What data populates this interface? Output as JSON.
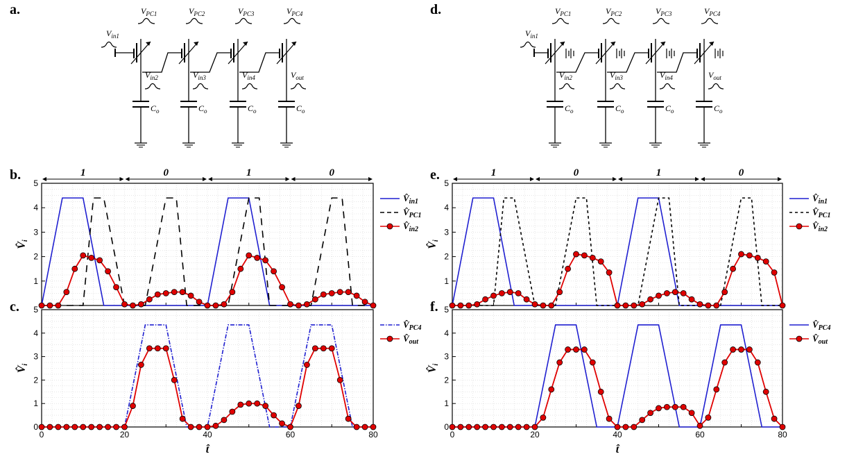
{
  "figure": {
    "panel_letters": {
      "a": "a.",
      "b": "b.",
      "c": "c.",
      "d": "d.",
      "e": "e.",
      "f": "f."
    },
    "circuit": {
      "vin1": "V",
      "vin1_sub": "in1",
      "vpc": [
        {
          "v": "V",
          "sub": "PC1"
        },
        {
          "v": "V",
          "sub": "PC2"
        },
        {
          "v": "V",
          "sub": "PC3"
        },
        {
          "v": "V",
          "sub": "PC4"
        }
      ],
      "vnodes": [
        {
          "v": "V",
          "sub": "in2"
        },
        {
          "v": "V",
          "sub": "in3"
        },
        {
          "v": "V",
          "sub": "in4"
        },
        {
          "v": "V",
          "sub": "out"
        }
      ],
      "cap": {
        "v": "C",
        "sub": "o"
      }
    },
    "bits": [
      "1",
      "0",
      "1",
      "0"
    ],
    "xlabel": "t̂",
    "ylabel": "V̂",
    "ylabel_sub": "i"
  },
  "chart_data": [
    {
      "panel": "b",
      "type": "line",
      "xlim": [
        0,
        80
      ],
      "ylim": [
        0,
        5
      ],
      "yticks": [
        1,
        2,
        3,
        4,
        5
      ],
      "grid": true,
      "legend_placement": "right",
      "series": [
        {
          "name": "V̂",
          "name_sub": "in1",
          "color": "#1f1fd0",
          "style": "solid",
          "x": [
            0,
            5,
            10,
            15,
            20,
            25,
            30,
            35,
            40,
            45,
            50,
            55,
            60,
            65,
            70,
            75,
            80
          ],
          "y": [
            0,
            4.4,
            4.4,
            0,
            0,
            0,
            0,
            0,
            0,
            4.4,
            4.4,
            0,
            0,
            0,
            0,
            0,
            0
          ]
        },
        {
          "name": "V̂",
          "name_sub": "PC1",
          "color": "#000000",
          "style": "longdash",
          "x": [
            0,
            5,
            10,
            12.5,
            15,
            20,
            25,
            30,
            32.5,
            35,
            40,
            45,
            50,
            52.5,
            55,
            60,
            65,
            70,
            72.5,
            75,
            80
          ],
          "y": [
            0,
            0,
            0,
            4.4,
            4.4,
            0,
            0,
            4.4,
            4.4,
            0,
            0,
            0,
            4.4,
            4.4,
            0,
            0,
            0,
            4.4,
            4.4,
            0,
            0
          ]
        },
        {
          "name": "V̂",
          "name_sub": "in2",
          "color": "#e00000",
          "style": "markers",
          "x": [
            0,
            2,
            4,
            6,
            8,
            10,
            12,
            14,
            16,
            18,
            20,
            22,
            24,
            26,
            28,
            30,
            32,
            34,
            36,
            38,
            40,
            42,
            44,
            46,
            48,
            50,
            52,
            54,
            56,
            58,
            60,
            62,
            64,
            66,
            68,
            70,
            72,
            74,
            76,
            78,
            80
          ],
          "y": [
            0,
            0,
            0,
            0.55,
            1.5,
            2.05,
            1.95,
            1.85,
            1.4,
            0.75,
            0.05,
            0,
            0.05,
            0.25,
            0.45,
            0.5,
            0.55,
            0.55,
            0.4,
            0.15,
            0,
            0,
            0.05,
            0.55,
            1.5,
            2.05,
            1.95,
            1.85,
            1.4,
            0.75,
            0.05,
            0,
            0.05,
            0.25,
            0.45,
            0.5,
            0.55,
            0.55,
            0.4,
            0.15,
            0
          ]
        }
      ]
    },
    {
      "panel": "c",
      "type": "line",
      "xlim": [
        0,
        80
      ],
      "ylim": [
        0,
        5
      ],
      "xticks": [
        0,
        20,
        40,
        60,
        80
      ],
      "yticks": [
        0,
        1,
        2,
        3,
        4,
        5
      ],
      "grid": true,
      "legend_placement": "right",
      "series": [
        {
          "name": "V̂",
          "name_sub": "PC4",
          "color": "#1f1fd0",
          "style": "dashdot",
          "x": [
            0,
            20,
            25,
            30,
            35,
            40,
            45,
            50,
            55,
            60,
            65,
            70,
            75,
            80
          ],
          "y": [
            0,
            0,
            4.35,
            4.35,
            0,
            0,
            4.35,
            4.35,
            0,
            0,
            4.35,
            4.35,
            0,
            0
          ]
        },
        {
          "name": "V̂",
          "name_sub": "out",
          "color": "#e00000",
          "style": "markers",
          "x": [
            0,
            2,
            4,
            6,
            8,
            10,
            12,
            14,
            16,
            18,
            20,
            22,
            24,
            26,
            28,
            30,
            32,
            34,
            36,
            38,
            40,
            42,
            44,
            46,
            48,
            50,
            52,
            54,
            56,
            58,
            60,
            62,
            64,
            66,
            68,
            70,
            72,
            74,
            76,
            78,
            80
          ],
          "y": [
            0,
            0,
            0,
            0,
            0,
            0,
            0,
            0,
            0,
            0,
            0,
            0.9,
            2.65,
            3.35,
            3.35,
            3.35,
            2.0,
            0.35,
            0,
            0,
            0,
            0.05,
            0.3,
            0.65,
            0.95,
            1.0,
            1.0,
            0.9,
            0.5,
            0.15,
            0,
            0.9,
            2.65,
            3.35,
            3.35,
            3.35,
            2.0,
            0.35,
            0,
            0,
            0
          ]
        }
      ]
    },
    {
      "panel": "e",
      "type": "line",
      "xlim": [
        0,
        80
      ],
      "ylim": [
        0,
        5
      ],
      "yticks": [
        1,
        2,
        3,
        4,
        5
      ],
      "grid": true,
      "legend_placement": "right",
      "series": [
        {
          "name": "V̂",
          "name_sub": "in1",
          "color": "#1f1fd0",
          "style": "solid",
          "x": [
            0,
            5,
            10,
            15,
            20,
            25,
            30,
            35,
            40,
            45,
            50,
            55,
            60,
            65,
            70,
            75,
            80
          ],
          "y": [
            0,
            4.4,
            4.4,
            0,
            0,
            0,
            0,
            0,
            0,
            4.4,
            4.4,
            0,
            0,
            0,
            0,
            0,
            0
          ]
        },
        {
          "name": "V̂",
          "name_sub": "PC1",
          "color": "#000000",
          "style": "shortdash",
          "x": [
            0,
            5,
            10,
            12.5,
            15,
            20,
            25,
            30,
            32.5,
            35,
            40,
            45,
            50,
            52.5,
            55,
            60,
            65,
            70,
            72.5,
            75,
            80
          ],
          "y": [
            0,
            0,
            0,
            4.4,
            4.4,
            0,
            0,
            4.4,
            4.4,
            0,
            0,
            0,
            4.4,
            4.4,
            0,
            0,
            0,
            4.4,
            4.4,
            0,
            0
          ]
        },
        {
          "name": "V̂",
          "name_sub": "in2",
          "color": "#e00000",
          "style": "markers",
          "x": [
            0,
            2,
            4,
            6,
            8,
            10,
            12,
            14,
            16,
            18,
            20,
            22,
            24,
            26,
            28,
            30,
            32,
            34,
            36,
            38,
            40,
            42,
            44,
            46,
            48,
            50,
            52,
            54,
            56,
            58,
            60,
            62,
            64,
            66,
            68,
            70,
            72,
            74,
            76,
            78,
            80
          ],
          "y": [
            0,
            0,
            0,
            0.05,
            0.25,
            0.4,
            0.5,
            0.55,
            0.5,
            0.25,
            0.05,
            0,
            0,
            0.55,
            1.5,
            2.1,
            2.05,
            1.95,
            1.8,
            1.35,
            0,
            0,
            0,
            0.05,
            0.25,
            0.4,
            0.5,
            0.55,
            0.5,
            0.25,
            0.05,
            0,
            0,
            0.55,
            1.5,
            2.1,
            2.05,
            1.95,
            1.8,
            1.35,
            0
          ]
        }
      ]
    },
    {
      "panel": "f",
      "type": "line",
      "xlim": [
        0,
        80
      ],
      "ylim": [
        0,
        5
      ],
      "xticks": [
        0,
        20,
        40,
        60,
        80
      ],
      "yticks": [
        0,
        1,
        2,
        3,
        4,
        5
      ],
      "grid": true,
      "legend_placement": "right",
      "series": [
        {
          "name": "V̂",
          "name_sub": "PC4",
          "color": "#1f1fd0",
          "style": "solid",
          "x": [
            0,
            20,
            25,
            30,
            35,
            40,
            45,
            50,
            55,
            60,
            65,
            70,
            75,
            80
          ],
          "y": [
            0,
            0,
            4.35,
            4.35,
            0,
            0,
            4.35,
            4.35,
            0,
            0,
            4.35,
            4.35,
            0,
            0
          ]
        },
        {
          "name": "V̂",
          "name_sub": "out",
          "color": "#e00000",
          "style": "markers",
          "x": [
            0,
            2,
            4,
            6,
            8,
            10,
            12,
            14,
            16,
            18,
            20,
            22,
            24,
            26,
            28,
            30,
            32,
            34,
            36,
            38,
            40,
            42,
            44,
            46,
            48,
            50,
            52,
            54,
            56,
            58,
            60,
            62,
            64,
            66,
            68,
            70,
            72,
            74,
            76,
            78,
            80
          ],
          "y": [
            0,
            0,
            0,
            0,
            0,
            0,
            0,
            0,
            0,
            0,
            0,
            0.4,
            1.6,
            2.75,
            3.3,
            3.3,
            3.3,
            2.75,
            1.5,
            0.35,
            0,
            0,
            0,
            0.3,
            0.6,
            0.8,
            0.85,
            0.85,
            0.85,
            0.6,
            0.05,
            0.4,
            1.6,
            2.75,
            3.3,
            3.3,
            3.3,
            2.75,
            1.5,
            0.35,
            0
          ]
        }
      ]
    }
  ]
}
